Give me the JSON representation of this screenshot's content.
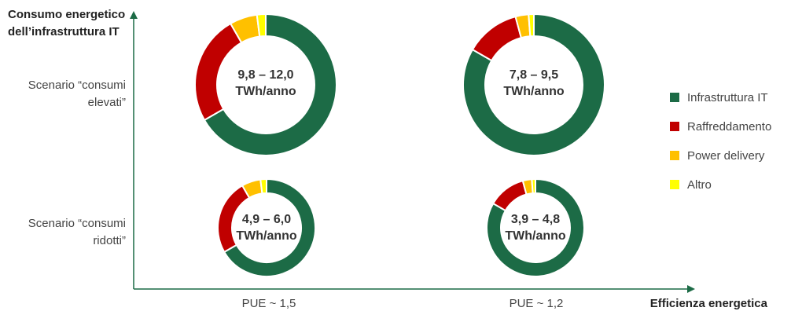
{
  "chart_data": {
    "type": "donut",
    "title": "",
    "ylabel": "Consumo energetico dell’infrastruttura IT",
    "xlabel": "Efficienza energetica",
    "rows": [
      "Scenario “consumi elevati”",
      "Scenario “consumi ridotti”"
    ],
    "columns": [
      "PUE ~ 1,5",
      "PUE ~ 1,2"
    ],
    "series": [
      {
        "name": "Infrastruttura IT",
        "color": "#1c6b46"
      },
      {
        "name": "Raffreddamento",
        "color": "#c00000"
      },
      {
        "name": "Power delivery",
        "color": "#ffc000"
      },
      {
        "name": "Altro",
        "color": "#ffff00"
      }
    ],
    "legend": "right",
    "charts": [
      {
        "row": 0,
        "col": 0,
        "label_line1": "9,8 – 12,0",
        "label_line2": "TWh/anno",
        "values": [
          66.7,
          25.0,
          6.3,
          2.0
        ]
      },
      {
        "row": 0,
        "col": 1,
        "label_line1": "7,8 – 9,5",
        "label_line2": "TWh/anno",
        "values": [
          83.3,
          12.5,
          3.0,
          1.2
        ]
      },
      {
        "row": 1,
        "col": 0,
        "label_line1": "4,9 – 6,0",
        "label_line2": "TWh/anno",
        "values": [
          66.7,
          25.0,
          6.3,
          2.0
        ]
      },
      {
        "row": 1,
        "col": 1,
        "label_line1": "3,9 – 4,8",
        "label_line2": "TWh/anno",
        "values": [
          83.3,
          12.5,
          3.0,
          1.2
        ]
      }
    ]
  }
}
